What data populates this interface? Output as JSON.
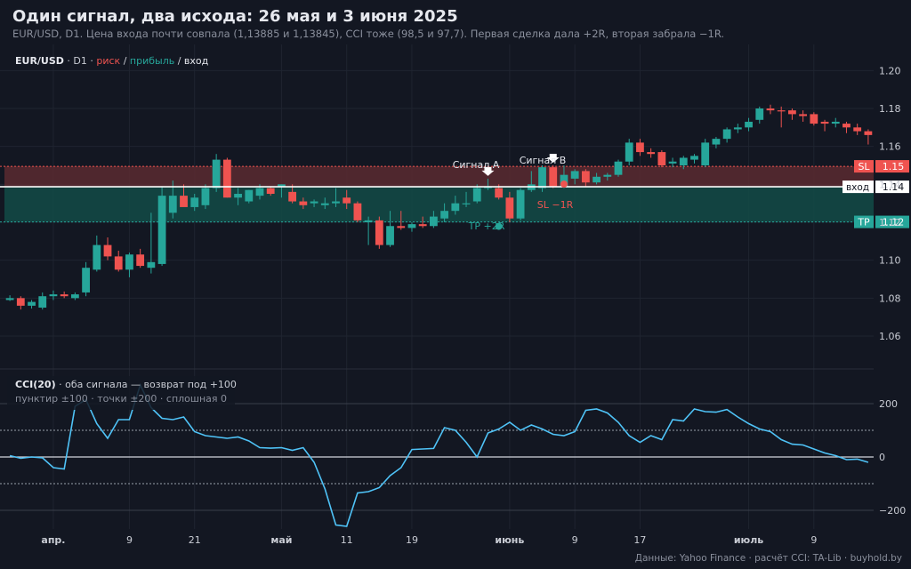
{
  "header": {
    "title": "Один сигнал, два исхода: 26 мая и 3 июня 2025",
    "subtitle": "EUR/USD, D1. Цена входа почти совпала (1,13885 и 1,13845), CCI тоже (98,5 и 97,7). Первая сделка дала +2R, вторая забрала −1R."
  },
  "footer": "Данные: Yahoo Finance · расчёт CCI: TA-Lib · buyhold.by",
  "legend_price": {
    "symbol": "EUR/USD",
    "tf": " · D1 · ",
    "risk": "риск",
    "sep1": " / ",
    "profit": "прибыль",
    "sep2": " / ",
    "entry": "вход"
  },
  "legend_cci": {
    "name": "CCI(20)",
    "desc": " · оба сигнала — возврат под +100",
    "line2": "пунктир ±100 · точки ±200 · сплошная 0"
  },
  "colors": {
    "up": "#26a69a",
    "down": "#ef5350",
    "cci": "#4fc3f7",
    "risk_band": "#5a2a30",
    "profit_band": "#134b46",
    "bg": "#131722"
  },
  "annotations": {
    "signal_a": "Сигнал A",
    "signal_b": "Сигнал B",
    "tp": "TP +2R",
    "sl_hit": "SL −1R",
    "sl_tag": "SL",
    "sl_val": "1.15",
    "entry_tag": "вход",
    "entry_val": "1.14",
    "tp_tag": "TP",
    "tp_val": "1.12"
  },
  "chart_data": [
    {
      "type": "candlestick",
      "yticks": [
        "1.06",
        "1.08",
        "1.10",
        "1.12",
        "1.14",
        "1.16",
        "1.18",
        "1.20"
      ],
      "ylim": [
        1.045,
        1.21
      ],
      "levels": {
        "sl": 1.1495,
        "entry": 1.1387,
        "tp": 1.1202
      },
      "candles": [
        [
          1.079,
          1.0815,
          1.0785,
          1.08
        ],
        [
          1.08,
          1.081,
          1.074,
          1.076
        ],
        [
          1.076,
          1.079,
          1.0745,
          1.078
        ],
        [
          1.075,
          1.083,
          1.074,
          1.081
        ],
        [
          1.081,
          1.084,
          1.079,
          1.082
        ],
        [
          1.082,
          1.0835,
          1.08,
          1.081
        ],
        [
          1.08,
          1.083,
          1.079,
          1.082
        ],
        [
          1.083,
          1.099,
          1.081,
          1.096
        ],
        [
          1.095,
          1.113,
          1.094,
          1.108
        ],
        [
          1.108,
          1.112,
          1.1,
          1.102
        ],
        [
          1.102,
          1.105,
          1.094,
          1.095
        ],
        [
          1.095,
          1.104,
          1.091,
          1.103
        ],
        [
          1.103,
          1.106,
          1.096,
          1.097
        ],
        [
          1.096,
          1.125,
          1.093,
          1.099
        ],
        [
          1.098,
          1.139,
          1.097,
          1.134
        ],
        [
          1.125,
          1.142,
          1.122,
          1.134
        ],
        [
          1.134,
          1.14,
          1.129,
          1.128
        ],
        [
          1.128,
          1.135,
          1.126,
          1.133
        ],
        [
          1.129,
          1.14,
          1.127,
          1.138
        ],
        [
          1.138,
          1.156,
          1.136,
          1.153
        ],
        [
          1.153,
          1.154,
          1.133,
          1.133
        ],
        [
          1.133,
          1.138,
          1.129,
          1.135
        ],
        [
          1.131,
          1.137,
          1.13,
          1.137
        ],
        [
          1.134,
          1.14,
          1.132,
          1.138
        ],
        [
          1.138,
          1.139,
          1.134,
          1.135
        ],
        [
          1.139,
          1.14,
          1.133,
          1.14
        ],
        [
          1.136,
          1.14,
          1.13,
          1.131
        ],
        [
          1.131,
          1.133,
          1.127,
          1.129
        ],
        [
          1.13,
          1.132,
          1.128,
          1.131
        ],
        [
          1.129,
          1.133,
          1.127,
          1.13
        ],
        [
          1.13,
          1.138,
          1.128,
          1.131
        ],
        [
          1.133,
          1.137,
          1.127,
          1.13
        ],
        [
          1.13,
          1.131,
          1.12,
          1.121
        ],
        [
          1.12,
          1.123,
          1.108,
          1.121
        ],
        [
          1.121,
          1.123,
          1.106,
          1.108
        ],
        [
          1.108,
          1.126,
          1.107,
          1.118
        ],
        [
          1.118,
          1.126,
          1.116,
          1.117
        ],
        [
          1.117,
          1.12,
          1.115,
          1.119
        ],
        [
          1.119,
          1.123,
          1.117,
          1.118
        ],
        [
          1.118,
          1.126,
          1.117,
          1.123
        ],
        [
          1.122,
          1.13,
          1.12,
          1.126
        ],
        [
          1.126,
          1.134,
          1.124,
          1.13
        ],
        [
          1.13,
          1.136,
          1.128,
          1.13
        ],
        [
          1.131,
          1.14,
          1.13,
          1.138
        ],
        [
          1.138,
          1.143,
          1.137,
          1.139
        ],
        [
          1.138,
          1.14,
          1.132,
          1.133
        ],
        [
          1.133,
          1.136,
          1.12,
          1.122
        ],
        [
          1.122,
          1.138,
          1.121,
          1.137
        ],
        [
          1.137,
          1.147,
          1.136,
          1.14
        ],
        [
          1.138,
          1.15,
          1.136,
          1.149
        ],
        [
          1.149,
          1.15,
          1.138,
          1.1385
        ],
        [
          1.1385,
          1.15,
          1.138,
          1.145
        ],
        [
          1.143,
          1.148,
          1.14,
          1.147
        ],
        [
          1.147,
          1.148,
          1.139,
          1.141
        ],
        [
          1.141,
          1.146,
          1.14,
          1.144
        ],
        [
          1.144,
          1.146,
          1.142,
          1.145
        ],
        [
          1.145,
          1.153,
          1.144,
          1.152
        ],
        [
          1.152,
          1.164,
          1.15,
          1.162
        ],
        [
          1.162,
          1.164,
          1.155,
          1.157
        ],
        [
          1.157,
          1.159,
          1.154,
          1.156
        ],
        [
          1.157,
          1.158,
          1.149,
          1.15
        ],
        [
          1.151,
          1.154,
          1.149,
          1.152
        ],
        [
          1.15,
          1.155,
          1.148,
          1.154
        ],
        [
          1.153,
          1.156,
          1.151,
          1.155
        ],
        [
          1.15,
          1.164,
          1.149,
          1.162
        ],
        [
          1.161,
          1.165,
          1.159,
          1.164
        ],
        [
          1.164,
          1.17,
          1.162,
          1.169
        ],
        [
          1.169,
          1.172,
          1.167,
          1.17
        ],
        [
          1.17,
          1.175,
          1.168,
          1.173
        ],
        [
          1.174,
          1.181,
          1.172,
          1.18
        ],
        [
          1.18,
          1.182,
          1.177,
          1.179
        ],
        [
          1.179,
          1.181,
          1.17,
          1.1785
        ],
        [
          1.179,
          1.18,
          1.174,
          1.177
        ],
        [
          1.177,
          1.179,
          1.173,
          1.176
        ],
        [
          1.177,
          1.178,
          1.171,
          1.172
        ],
        [
          1.173,
          1.174,
          1.168,
          1.172
        ],
        [
          1.172,
          1.175,
          1.17,
          1.173
        ],
        [
          1.172,
          1.173,
          1.167,
          1.17
        ],
        [
          1.17,
          1.172,
          1.166,
          1.168
        ],
        [
          1.168,
          1.169,
          1.161,
          1.166
        ]
      ]
    },
    {
      "type": "line",
      "name": "CCI(20)",
      "yticks": [
        "−200",
        "0",
        "200"
      ],
      "ylim": [
        -270,
        300
      ],
      "guides": {
        "dashed": [
          100,
          -100
        ],
        "dotted": [
          200,
          -200
        ],
        "solid": 0
      },
      "values": [
        5,
        -5,
        0,
        -3,
        -40,
        -45,
        190,
        215,
        125,
        70,
        140,
        140,
        270,
        185,
        145,
        140,
        150,
        95,
        80,
        75,
        70,
        75,
        60,
        35,
        33,
        35,
        25,
        35,
        -20,
        -120,
        -255,
        -260,
        -135,
        -130,
        -115,
        -70,
        -40,
        28,
        30,
        32,
        110,
        100,
        55,
        0,
        90,
        105,
        130,
        100,
        120,
        105,
        85,
        80,
        95,
        175,
        180,
        165,
        130,
        80,
        55,
        80,
        65,
        140,
        135,
        180,
        170,
        168,
        178,
        150,
        125,
        105,
        95,
        65,
        48,
        45,
        30,
        15,
        5,
        -10,
        -8,
        -20
      ]
    }
  ],
  "xaxis": {
    "labels": [
      {
        "i": 4,
        "text": "апр.",
        "bold": true
      },
      {
        "i": 11,
        "text": "9",
        "bold": false
      },
      {
        "i": 17,
        "text": "21",
        "bold": false
      },
      {
        "i": 25,
        "text": "май",
        "bold": true
      },
      {
        "i": 31,
        "text": "11",
        "bold": false
      },
      {
        "i": 37,
        "text": "19",
        "bold": false
      },
      {
        "i": 46,
        "text": "июнь",
        "bold": true
      },
      {
        "i": 52,
        "text": "9",
        "bold": false
      },
      {
        "i": 58,
        "text": "17",
        "bold": false
      },
      {
        "i": 68,
        "text": "июль",
        "bold": true
      },
      {
        "i": 74,
        "text": "9",
        "bold": false
      }
    ]
  }
}
